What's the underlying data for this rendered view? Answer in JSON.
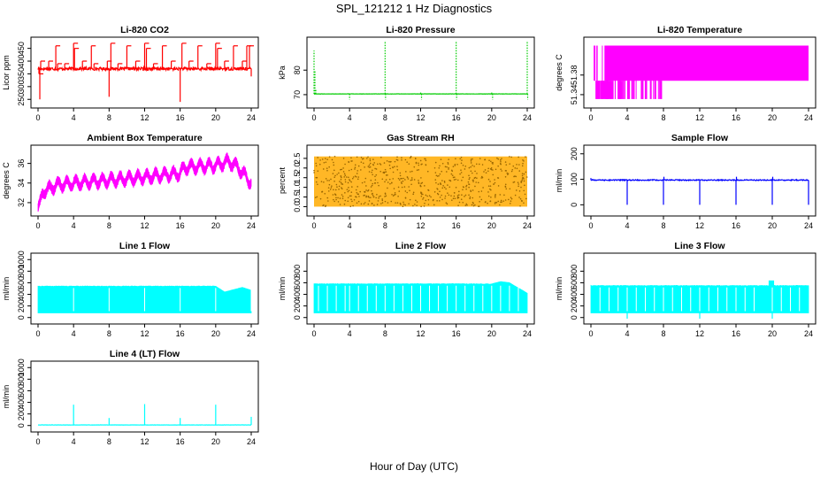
{
  "page": {
    "title": "SPL_121212  1 Hz Diagnostics",
    "x_axis_label": "Hour of Day (UTC)"
  },
  "chart_data": [
    {
      "id": "co2",
      "type": "line",
      "title": "Li-820 CO2",
      "ylabel": "Licor ppm",
      "color": "#ff0000",
      "xlim": [
        0,
        24
      ],
      "ylim": [
        230,
        480
      ],
      "x_ticks": [
        "0",
        "4",
        "8",
        "12",
        "16",
        "20",
        "24"
      ],
      "y_ticks": [
        "250",
        "300",
        "350",
        "400",
        "450"
      ],
      "series": [
        {
          "name": "CO2",
          "baseline": 370,
          "noise": 6,
          "oscillation_amp": 0,
          "spikes": [
            [
              0.1,
              350,
              0
            ],
            [
              0.2,
              250,
              1
            ],
            [
              0.3,
              400,
              0
            ],
            [
              1.2,
              400,
              0
            ],
            [
              2.0,
              460,
              0
            ],
            [
              2.2,
              390,
              0
            ],
            [
              3.0,
              390,
              0
            ],
            [
              4.0,
              470,
              0
            ],
            [
              4.1,
              450,
              0
            ],
            [
              5.0,
              400,
              0
            ],
            [
              6.0,
              460,
              0
            ],
            [
              6.3,
              390,
              0
            ],
            [
              7.8,
              400,
              0
            ],
            [
              8.0,
              260,
              1
            ],
            [
              8.2,
              470,
              0
            ],
            [
              9.0,
              390,
              0
            ],
            [
              10.0,
              460,
              0
            ],
            [
              11.0,
              400,
              0
            ],
            [
              12.0,
              470,
              0
            ],
            [
              12.2,
              450,
              0
            ],
            [
              13.0,
              390,
              0
            ],
            [
              14.0,
              460,
              0
            ],
            [
              15.0,
              400,
              0
            ],
            [
              16.0,
              240,
              1
            ],
            [
              16.2,
              470,
              0
            ],
            [
              17.0,
              400,
              0
            ],
            [
              18.0,
              460,
              0
            ],
            [
              19.0,
              390,
              0
            ],
            [
              20.0,
              470,
              0
            ],
            [
              20.2,
              450,
              0
            ],
            [
              21.0,
              400,
              0
            ],
            [
              22.0,
              460,
              0
            ],
            [
              23.0,
              400,
              0
            ],
            [
              23.5,
              460,
              0
            ],
            [
              23.8,
              460,
              0
            ],
            [
              24.0,
              340,
              1
            ]
          ]
        }
      ]
    },
    {
      "id": "pressure",
      "type": "line",
      "title": "Li-820 Pressure",
      "ylabel": "kPa",
      "color": "#00cc00",
      "xlim": [
        0,
        24
      ],
      "ylim": [
        66,
        92
      ],
      "x_ticks": [
        "0",
        "4",
        "8",
        "12",
        "16",
        "20",
        "24"
      ],
      "y_ticks": [
        "70",
        "80"
      ],
      "series": [
        {
          "name": "Pressure",
          "baseline": 70.3,
          "noise": 0.05,
          "oscillation_amp": 0,
          "spikes": [
            [
              0.0,
              88,
              0
            ],
            [
              0.1,
              80,
              0
            ],
            [
              0.2,
              72,
              0
            ],
            [
              4.0,
              68,
              1
            ],
            [
              8.0,
              92,
              0
            ],
            [
              8.05,
              68,
              1
            ],
            [
              12.0,
              71,
              0
            ],
            [
              12.1,
              68,
              1
            ],
            [
              16.0,
              92,
              0
            ],
            [
              16.05,
              68,
              1
            ],
            [
              20.0,
              71,
              0
            ],
            [
              20.1,
              68,
              1
            ],
            [
              24.0,
              92,
              0
            ],
            [
              24.05,
              68,
              1
            ]
          ]
        }
      ]
    },
    {
      "id": "licor_temp",
      "type": "area",
      "title": "Li-820 Temperature",
      "ylabel": "degrees C",
      "color": "#ff00ff",
      "xlim": [
        0,
        24
      ],
      "ylim": [
        51.32,
        51.45
      ],
      "x_ticks": [
        "0",
        "4",
        "8",
        "12",
        "16",
        "20",
        "24"
      ],
      "y_ticks": [
        "51.34",
        "51.38"
      ],
      "y_tick_values": [
        51.34,
        51.38
      ],
      "band_low": 51.3685,
      "band_high": 51.44,
      "low_state": 51.331,
      "high_state": 51.44,
      "low_segments": [
        [
          0.5,
          1.0
        ],
        [
          1.0,
          2.5
        ],
        [
          3.0,
          3.5
        ],
        [
          4.0,
          4.3
        ],
        [
          5.5,
          5.8
        ],
        [
          6.0,
          6.2
        ],
        [
          6.5,
          6.7
        ],
        [
          7.0,
          7.2
        ],
        [
          7.7,
          7.8
        ]
      ],
      "high_segments": [
        [
          0.3,
          0.5
        ],
        [
          0.6,
          0.7
        ],
        [
          1.5,
          24.0
        ]
      ]
    },
    {
      "id": "box_temp",
      "type": "line",
      "title": "Ambient Box Temperature",
      "ylabel": "degrees C",
      "color": "#ff00ff",
      "xlim": [
        0,
        24
      ],
      "ylim": [
        31,
        37.5
      ],
      "x_ticks": [
        "0",
        "4",
        "8",
        "12",
        "16",
        "20",
        "24"
      ],
      "y_ticks": [
        "32",
        "34",
        "36"
      ],
      "trend": [
        [
          0,
          31.5
        ],
        [
          0.5,
          33.0
        ],
        [
          2,
          33.8
        ],
        [
          4,
          34.0
        ],
        [
          8,
          34.3
        ],
        [
          12,
          34.6
        ],
        [
          16,
          35.0
        ],
        [
          16.5,
          35.6
        ],
        [
          20,
          35.8
        ],
        [
          21.5,
          36.2
        ],
        [
          22.5,
          35.6
        ],
        [
          24,
          34.0
        ]
      ],
      "oscillation_amp": 0.9,
      "oscillation_period_h": 1.0,
      "noise": 0.25
    },
    {
      "id": "rh",
      "type": "scatter",
      "title": "Gas Stream RH",
      "ylabel": "percent",
      "color": "#ffaa00",
      "edge_color": "#996600",
      "xlim": [
        0,
        24
      ],
      "ylim": [
        -0.3,
        3.0
      ],
      "x_ticks": [
        "0",
        "4",
        "8",
        "12",
        "16",
        "20",
        "24"
      ],
      "y_ticks": [
        "0.0",
        "0.5",
        "1.0",
        "1.5",
        "2.0",
        "2.5"
      ],
      "y_tick_values": [
        0,
        0.5,
        1.0,
        1.5,
        2.0,
        2.5
      ],
      "band_low": 0.0,
      "band_high": 2.6,
      "center": 1.3
    },
    {
      "id": "sample_flow",
      "type": "line",
      "title": "Sample Flow",
      "ylabel": "ml/min",
      "color": "#0000ff",
      "xlim": [
        0,
        24
      ],
      "ylim": [
        -30,
        220
      ],
      "x_ticks": [
        "0",
        "4",
        "8",
        "12",
        "16",
        "20",
        "24"
      ],
      "y_ticks": [
        "0",
        "100",
        "200"
      ],
      "series": [
        {
          "name": "Sample",
          "baseline": 97,
          "noise": 2,
          "oscillation_amp": 0,
          "spikes": [
            [
              0.0,
              105,
              0
            ],
            [
              4.0,
              0,
              1
            ],
            [
              8.0,
              0,
              1
            ],
            [
              8.05,
              110,
              0
            ],
            [
              12.0,
              0,
              1
            ],
            [
              16.0,
              0,
              1
            ],
            [
              16.05,
              110,
              0
            ],
            [
              20.0,
              0,
              1
            ],
            [
              20.05,
              110,
              0
            ],
            [
              24.0,
              0,
              1
            ]
          ]
        }
      ]
    },
    {
      "id": "line1",
      "type": "area",
      "title": "Line 1 Flow",
      "ylabel": "ml/min",
      "color": "#00ffff",
      "xlim": [
        0,
        24
      ],
      "ylim": [
        -50,
        1050
      ],
      "x_ticks": [
        "0",
        "4",
        "8",
        "12",
        "16",
        "20",
        "24"
      ],
      "y_ticks": [
        "0",
        "200",
        "400",
        "600",
        "800",
        "1000"
      ],
      "y_tick_values": [
        0,
        200,
        400,
        600,
        800,
        1000
      ],
      "band_low": 80,
      "band_high": 540,
      "gaps": [
        4,
        8,
        12,
        16,
        20,
        24
      ],
      "tail_dip": [
        [
          20,
          540
        ],
        [
          21,
          440
        ],
        [
          23,
          520
        ],
        [
          24,
          470
        ]
      ]
    },
    {
      "id": "line2",
      "type": "area",
      "title": "Line 2 Flow",
      "ylabel": "ml/min",
      "color": "#00ffff",
      "xlim": [
        0,
        24
      ],
      "ylim": [
        -50,
        1050
      ],
      "x_ticks": [
        "0",
        "4",
        "8",
        "12",
        "16",
        "20",
        "24"
      ],
      "y_ticks": [
        "0",
        "200",
        "400",
        "600",
        "800"
      ],
      "y_tick_values": [
        0,
        200,
        400,
        600,
        800
      ],
      "band_low": 80,
      "band_high": 580,
      "gaps": [
        0.5,
        1.5,
        2.5,
        3.5,
        4,
        5,
        6,
        7,
        8,
        9,
        10,
        11,
        12,
        13,
        14,
        15,
        16,
        17,
        18,
        19,
        20,
        21,
        22,
        23
      ],
      "tail_dip": [
        [
          20,
          580
        ],
        [
          21,
          620
        ],
        [
          22,
          600
        ],
        [
          24,
          420
        ]
      ]
    },
    {
      "id": "line3",
      "type": "area",
      "title": "Line 3 Flow",
      "ylabel": "ml/min",
      "color": "#00ffff",
      "xlim": [
        0,
        24
      ],
      "ylim": [
        -50,
        1050
      ],
      "x_ticks": [
        "0",
        "4",
        "8",
        "12",
        "16",
        "20",
        "24"
      ],
      "y_ticks": [
        "0",
        "200",
        "400",
        "600",
        "800"
      ],
      "y_tick_values": [
        0,
        200,
        400,
        600,
        800
      ],
      "band_low": 80,
      "band_high": 550,
      "gaps": [
        1,
        2,
        3,
        4,
        5,
        6,
        7,
        8,
        9,
        10,
        11,
        12,
        13,
        14,
        15,
        16,
        17,
        18,
        20,
        21,
        22,
        23
      ],
      "spikes_down": [
        4,
        12,
        20
      ],
      "bump": [
        19.6,
        20.2,
        640
      ]
    },
    {
      "id": "line4",
      "type": "line",
      "title": "Line 4 (LT) Flow",
      "ylabel": "ml/min",
      "color": "#00ffff",
      "xlim": [
        0,
        24
      ],
      "ylim": [
        -50,
        1050
      ],
      "x_ticks": [
        "0",
        "4",
        "8",
        "12",
        "16",
        "20",
        "24"
      ],
      "y_ticks": [
        "0",
        "200",
        "400",
        "600",
        "800",
        "1000"
      ],
      "series": [
        {
          "name": "Line4",
          "baseline": 10,
          "noise": 2,
          "oscillation_amp": 0,
          "spikes": [
            [
              4.0,
              360,
              0
            ],
            [
              8.0,
              130,
              0
            ],
            [
              12.0,
              370,
              0
            ],
            [
              16.0,
              130,
              0
            ],
            [
              20.0,
              360,
              0
            ],
            [
              24.0,
              150,
              0
            ]
          ]
        }
      ]
    }
  ]
}
